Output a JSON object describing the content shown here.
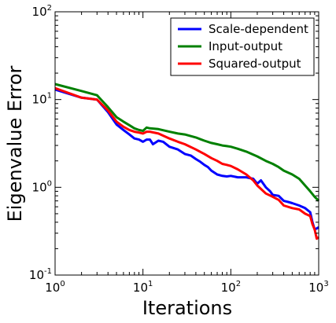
{
  "chart_data": {
    "type": "line",
    "title": "",
    "xlabel": "Iterations",
    "ylabel": "Eigenvalue Error",
    "xscale": "log",
    "yscale": "log",
    "xlim": [
      1,
      1000
    ],
    "ylim": [
      0.1,
      100
    ],
    "x_ticks": [
      {
        "base": "10",
        "exp": "0"
      },
      {
        "base": "10",
        "exp": "1"
      },
      {
        "base": "10",
        "exp": "2"
      },
      {
        "base": "10",
        "exp": "3"
      }
    ],
    "y_ticks": [
      {
        "base": "10",
        "exp": "-1"
      },
      {
        "base": "10",
        "exp": "0"
      },
      {
        "base": "10",
        "exp": "1"
      },
      {
        "base": "10",
        "exp": "2"
      }
    ],
    "grid": false,
    "legend_position": "top-right",
    "series": [
      {
        "name": "Scale-dependent",
        "color": "#0000ff",
        "points": [
          [
            1,
            13
          ],
          [
            2,
            10.5
          ],
          [
            3,
            10
          ],
          [
            4,
            7.2
          ],
          [
            5,
            5.2
          ],
          [
            6,
            4.5
          ],
          [
            7,
            4.0
          ],
          [
            8,
            3.6
          ],
          [
            9,
            3.5
          ],
          [
            10,
            3.3
          ],
          [
            11,
            3.5
          ],
          [
            12,
            3.5
          ],
          [
            13,
            3.1
          ],
          [
            15,
            3.4
          ],
          [
            17,
            3.3
          ],
          [
            20,
            2.9
          ],
          [
            25,
            2.7
          ],
          [
            30,
            2.4
          ],
          [
            35,
            2.3
          ],
          [
            40,
            2.1
          ],
          [
            45,
            1.95
          ],
          [
            50,
            1.8
          ],
          [
            55,
            1.7
          ],
          [
            60,
            1.55
          ],
          [
            70,
            1.4
          ],
          [
            80,
            1.35
          ],
          [
            90,
            1.33
          ],
          [
            100,
            1.35
          ],
          [
            120,
            1.3
          ],
          [
            150,
            1.3
          ],
          [
            180,
            1.25
          ],
          [
            200,
            1.1
          ],
          [
            220,
            1.2
          ],
          [
            250,
            1.0
          ],
          [
            280,
            0.9
          ],
          [
            300,
            0.82
          ],
          [
            350,
            0.8
          ],
          [
            400,
            0.7
          ],
          [
            450,
            0.68
          ],
          [
            500,
            0.66
          ],
          [
            600,
            0.62
          ],
          [
            700,
            0.58
          ],
          [
            800,
            0.52
          ],
          [
            850,
            0.4
          ],
          [
            900,
            0.33
          ],
          [
            950,
            0.34
          ],
          [
            1000,
            0.35
          ]
        ]
      },
      {
        "name": "Input-output",
        "color": "#008000",
        "points": [
          [
            1,
            15
          ],
          [
            2,
            12.5
          ],
          [
            3,
            11.2
          ],
          [
            4,
            8.2
          ],
          [
            5,
            6.3
          ],
          [
            6,
            5.6
          ],
          [
            7,
            5.1
          ],
          [
            8,
            4.7
          ],
          [
            9,
            4.5
          ],
          [
            10,
            4.4
          ],
          [
            11,
            4.8
          ],
          [
            12,
            4.7
          ],
          [
            15,
            4.6
          ],
          [
            20,
            4.3
          ],
          [
            25,
            4.1
          ],
          [
            30,
            4.0
          ],
          [
            40,
            3.7
          ],
          [
            50,
            3.4
          ],
          [
            60,
            3.2
          ],
          [
            70,
            3.1
          ],
          [
            80,
            3.0
          ],
          [
            90,
            2.95
          ],
          [
            100,
            2.9
          ],
          [
            120,
            2.75
          ],
          [
            150,
            2.55
          ],
          [
            200,
            2.25
          ],
          [
            250,
            2.0
          ],
          [
            300,
            1.85
          ],
          [
            350,
            1.7
          ],
          [
            400,
            1.55
          ],
          [
            500,
            1.4
          ],
          [
            600,
            1.25
          ],
          [
            700,
            1.05
          ],
          [
            800,
            0.9
          ],
          [
            900,
            0.78
          ],
          [
            1000,
            0.7
          ]
        ]
      },
      {
        "name": "Squared-output",
        "color": "#ff0000",
        "points": [
          [
            1,
            13.5
          ],
          [
            2,
            10.5
          ],
          [
            3,
            10.0
          ],
          [
            4,
            7.5
          ],
          [
            5,
            5.6
          ],
          [
            6,
            4.9
          ],
          [
            7,
            4.5
          ],
          [
            8,
            4.3
          ],
          [
            9,
            4.2
          ],
          [
            10,
            4.1
          ],
          [
            11,
            4.3
          ],
          [
            12,
            4.3
          ],
          [
            15,
            4.1
          ],
          [
            20,
            3.6
          ],
          [
            25,
            3.3
          ],
          [
            30,
            3.1
          ],
          [
            40,
            2.7
          ],
          [
            50,
            2.4
          ],
          [
            60,
            2.15
          ],
          [
            70,
            2.0
          ],
          [
            80,
            1.85
          ],
          [
            90,
            1.8
          ],
          [
            100,
            1.75
          ],
          [
            120,
            1.6
          ],
          [
            150,
            1.4
          ],
          [
            180,
            1.2
          ],
          [
            200,
            1.05
          ],
          [
            250,
            0.85
          ],
          [
            300,
            0.78
          ],
          [
            350,
            0.72
          ],
          [
            400,
            0.62
          ],
          [
            500,
            0.58
          ],
          [
            600,
            0.56
          ],
          [
            700,
            0.5
          ],
          [
            800,
            0.47
          ],
          [
            850,
            0.38
          ],
          [
            900,
            0.33
          ],
          [
            950,
            0.26
          ],
          [
            1000,
            0.27
          ]
        ]
      }
    ]
  }
}
